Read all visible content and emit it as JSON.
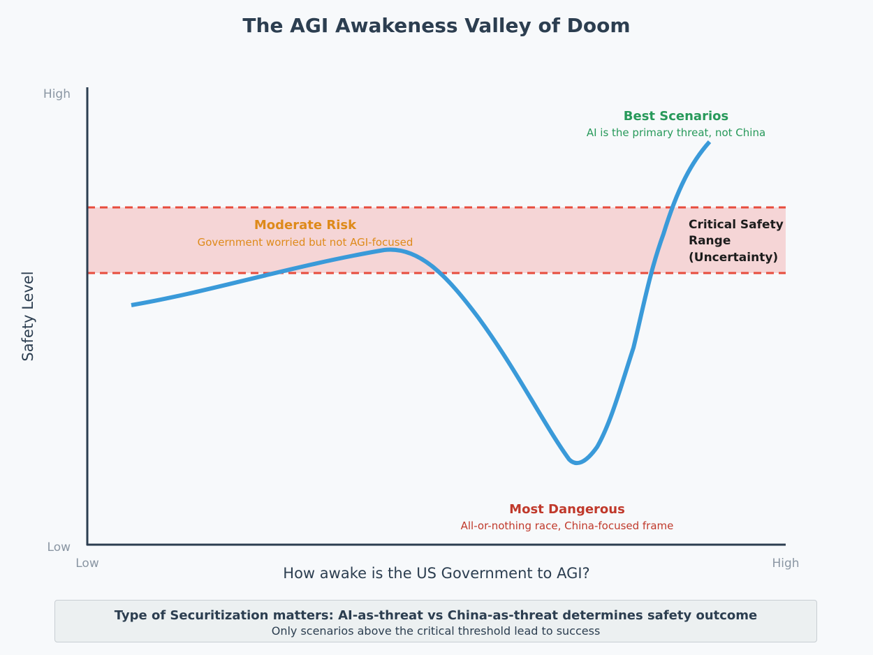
{
  "title": "The AGI Awakeness Valley of Doom",
  "axes": {
    "y_label": "Safety Level",
    "x_label": "How awake is the US Government to AGI?",
    "y_high": "High",
    "y_low": "Low",
    "x_low": "Low",
    "x_high": "High"
  },
  "band": {
    "label_lines": [
      "Critical Safety",
      "Range",
      "(Uncertainty)"
    ]
  },
  "annotations": {
    "best": {
      "title": "Best Scenarios",
      "subtitle": "AI is the primary threat, not China",
      "color": "#27995a"
    },
    "moderate": {
      "title": "Moderate Risk",
      "subtitle": "Government worried but not AGI-focused",
      "color": "#de8a1a"
    },
    "dangerous": {
      "title": "Most Dangerous",
      "subtitle": "All-or-nothing race, China-focused frame",
      "color": "#c0392b"
    }
  },
  "colors": {
    "curve": "#3a9ad9",
    "band_fill": "#f5d5d6",
    "band_line": "#e74c3c",
    "axis": "#2c3e50"
  },
  "footer": {
    "main": "Type of Securitization matters: AI-as-threat vs China-as-threat determines safety outcome",
    "sub": "Only scenarios above the critical threshold lead to success"
  }
}
